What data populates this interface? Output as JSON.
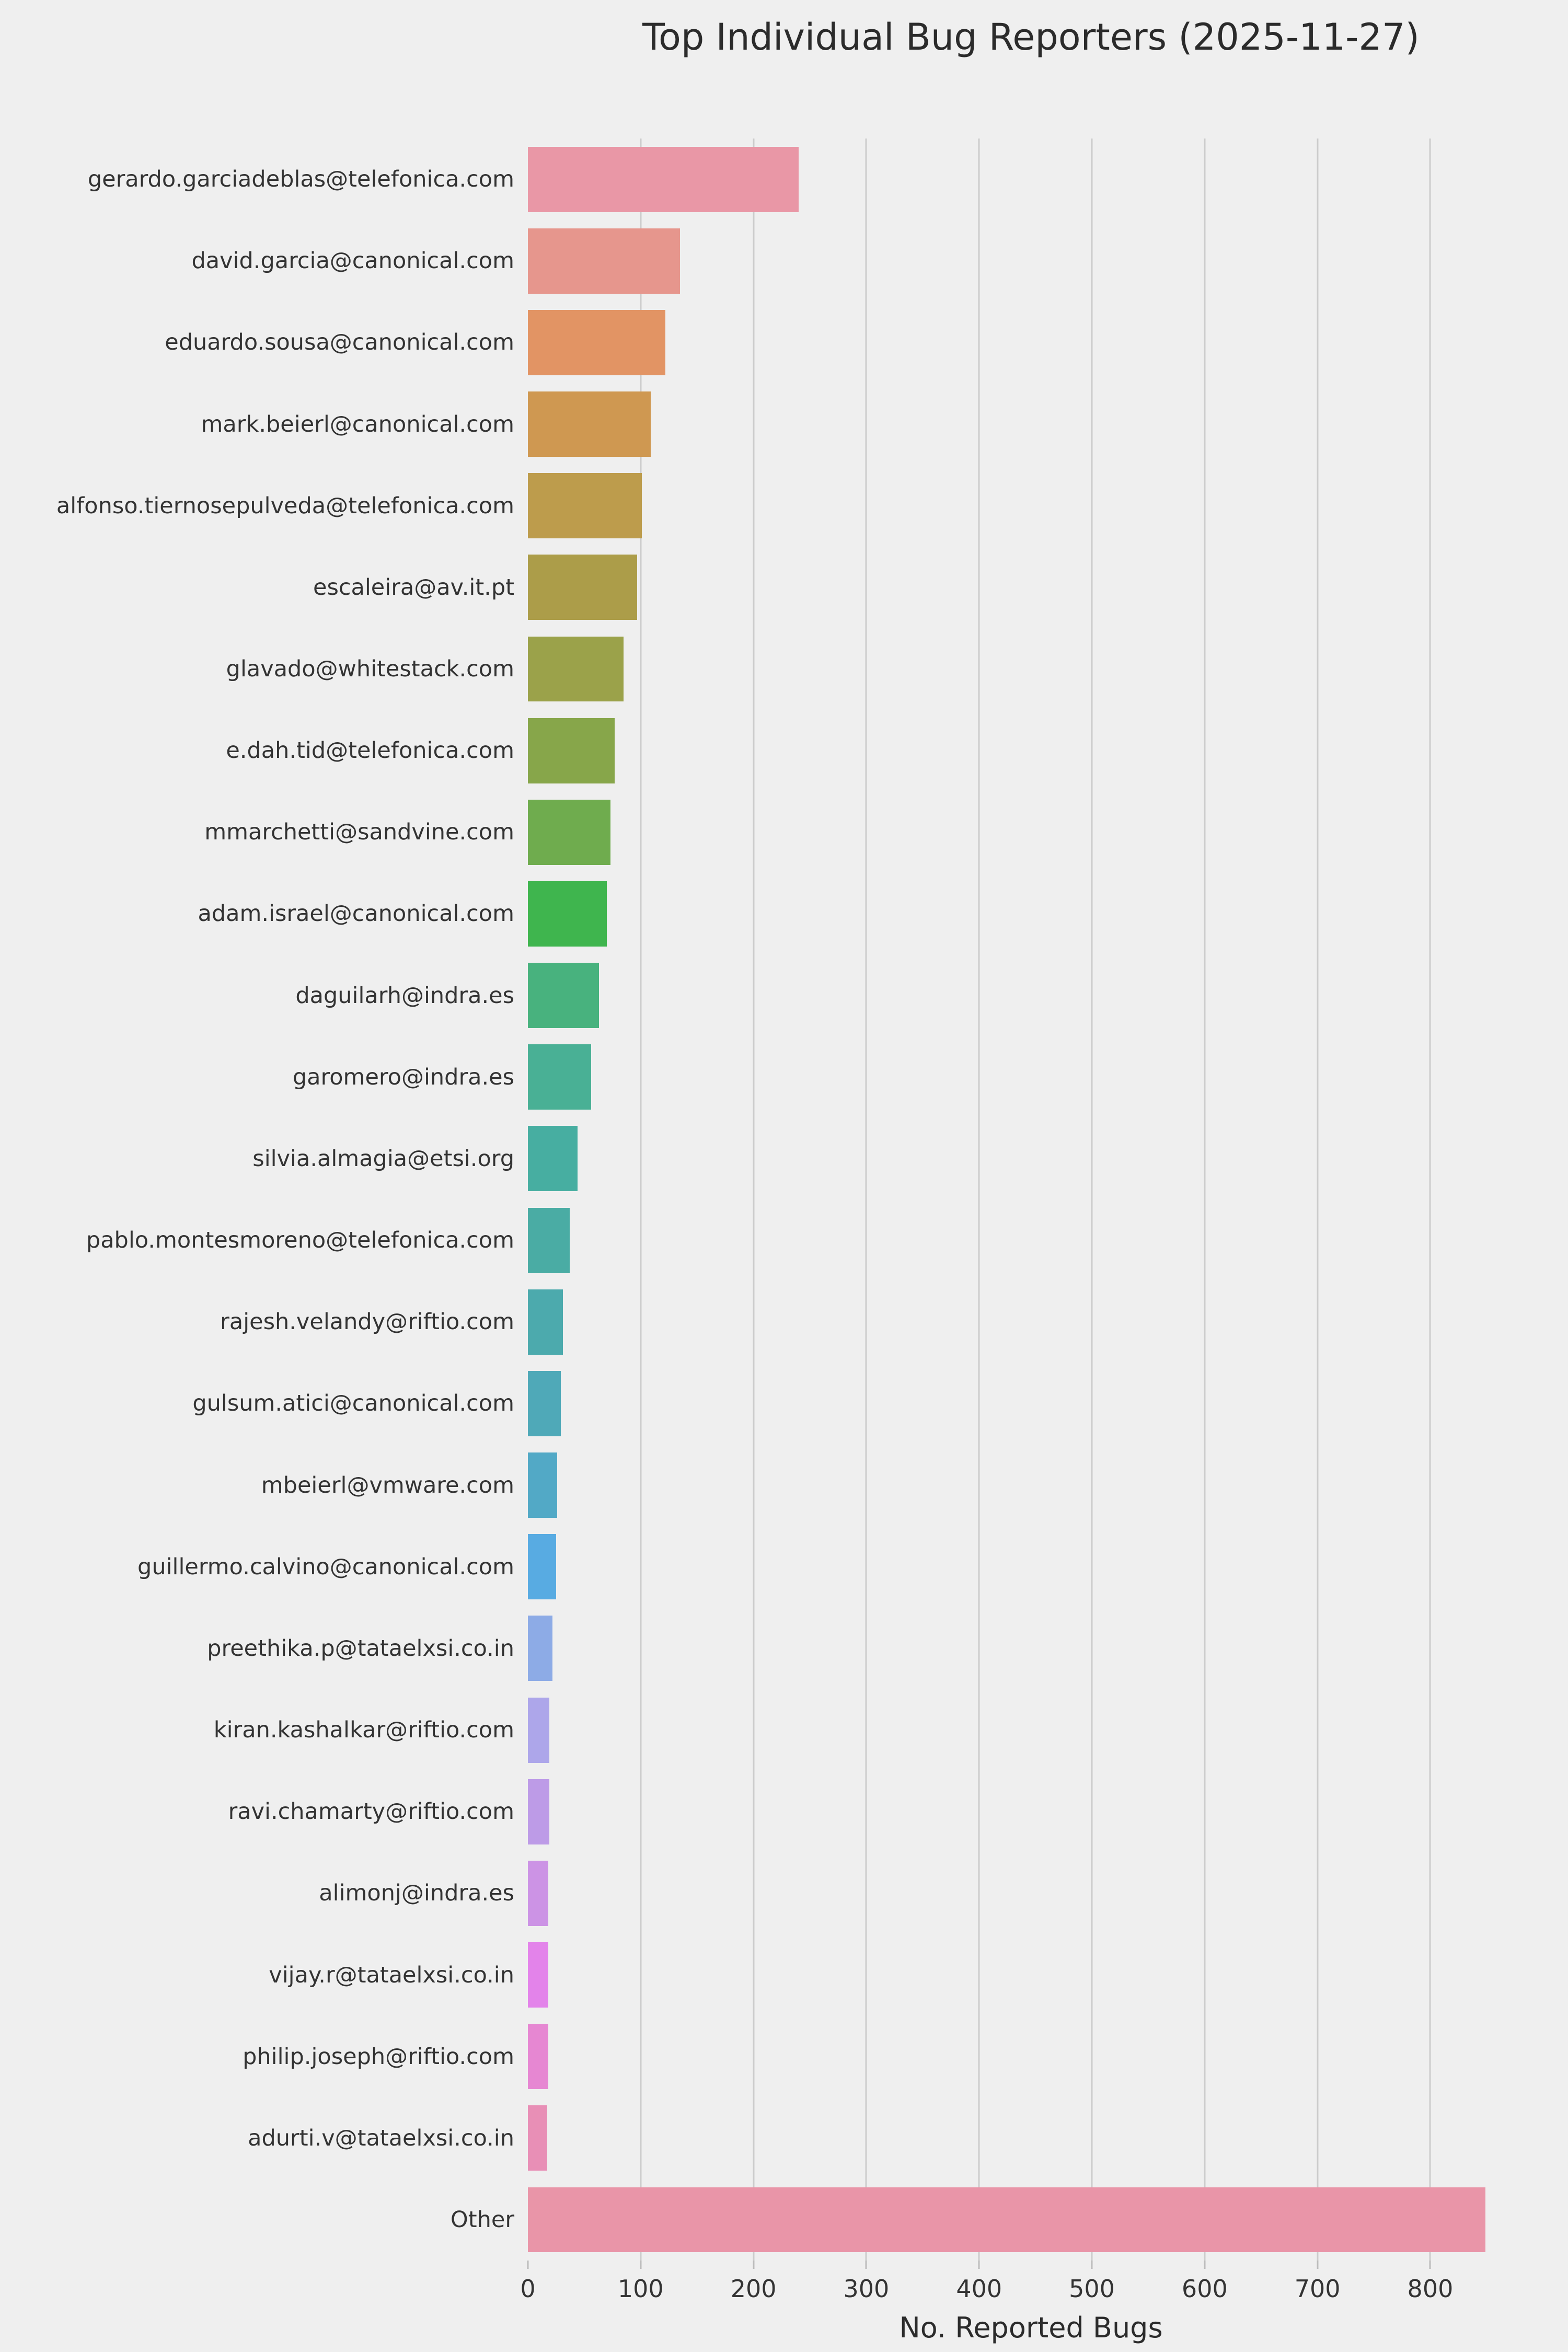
{
  "title": "Top Individual Bug Reporters (2025-11-27)",
  "chart_data": {
    "type": "bar",
    "orientation": "horizontal",
    "title": "Top Individual Bug Reporters (2025-11-27)",
    "xlabel": "No. Reported Bugs",
    "ylabel": "",
    "xlim": [
      0,
      892
    ],
    "grid": true,
    "legend": false,
    "x_ticks": [
      0,
      100,
      200,
      300,
      400,
      500,
      600,
      700,
      800
    ],
    "categories": [
      "gerardo.garciadeblas@telefonica.com",
      "david.garcia@canonical.com",
      "eduardo.sousa@canonical.com",
      "mark.beierl@canonical.com",
      "alfonso.tiernosepulveda@telefonica.com",
      "escaleira@av.it.pt",
      "glavado@whitestack.com",
      "e.dah.tid@telefonica.com",
      "mmarchetti@sandvine.com",
      "adam.israel@canonical.com",
      "daguilarh@indra.es",
      "garomero@indra.es",
      "silvia.almagia@etsi.org",
      "pablo.montesmoreno@telefonica.com",
      "rajesh.velandy@riftio.com",
      "gulsum.atici@canonical.com",
      "mbeierl@vmware.com",
      "guillermo.calvino@canonical.com",
      "preethika.p@tataelxsi.co.in",
      "kiran.kashalkar@riftio.com",
      "ravi.chamarty@riftio.com",
      "alimonj@indra.es",
      "vijay.r@tataelxsi.co.in",
      "philip.joseph@riftio.com",
      "adurti.v@tataelxsi.co.in",
      "Other"
    ],
    "values": [
      240,
      135,
      122,
      109,
      101,
      97,
      85,
      77,
      73,
      70,
      63,
      56,
      44,
      37,
      31,
      29,
      26,
      25,
      22,
      19,
      19,
      18,
      18,
      18,
      17,
      849
    ],
    "bar_colors": [
      "#e997a6",
      "#e6968d",
      "#e29464",
      "#cf9851",
      "#bd9c4c",
      "#ac9d49",
      "#9ba24a",
      "#87a64a",
      "#6fac4e",
      "#3fb54e",
      "#48b27e",
      "#49b095",
      "#47aea1",
      "#4aaca4",
      "#4caaad",
      "#4fa9b8",
      "#52a9c6",
      "#58abe2",
      "#8dabe6",
      "#ada6ea",
      "#bd9be7",
      "#cc93e5",
      "#e383ea",
      "#e687d2",
      "#e88fb6",
      "#e995a8"
    ],
    "background_color": "#efefef",
    "gridline_color": "#cccccc",
    "tick_mark_color": "#bcbcbc",
    "text_color": "#2b2b2b"
  }
}
